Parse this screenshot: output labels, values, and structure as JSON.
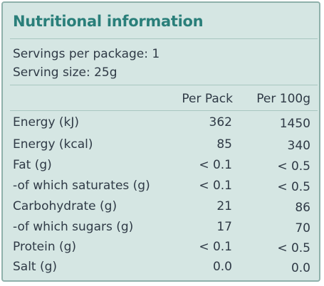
{
  "title": "Nutritional information",
  "servings_per_package": "Servings per package: 1",
  "serving_size": "Serving size: 25g",
  "columns": [
    "Per Pack",
    "Per 100g"
  ],
  "rows": [
    {
      "label": "Energy (kJ)",
      "per_pack": "362",
      "per_100g": "1450"
    },
    {
      "label": "Energy (kcal)",
      "per_pack": "85",
      "per_100g": "340"
    },
    {
      "label": "Fat (g)",
      "per_pack": "< 0.1",
      "per_100g": "< 0.5"
    },
    {
      "label": "-of which saturates (g)",
      "per_pack": "< 0.1",
      "per_100g": "< 0.5"
    },
    {
      "label": "Carbohydrate (g)",
      "per_pack": "21",
      "per_100g": "86"
    },
    {
      "label": "-of which sugars (g)",
      "per_pack": "17",
      "per_100g": "70"
    },
    {
      "label": "Protein (g)",
      "per_pack": "< 0.1",
      "per_100g": "< 0.5"
    },
    {
      "label": "Salt (g)",
      "per_pack": "0.0",
      "per_100g": "0.0"
    }
  ],
  "colors": {
    "background": "#d5e6e3",
    "title": "#2a7f7a",
    "text": "#2f3a46",
    "rule": "#a8c6c0"
  }
}
